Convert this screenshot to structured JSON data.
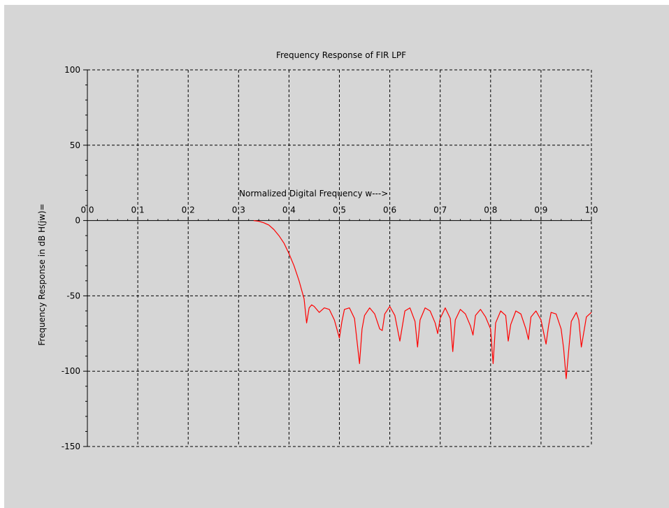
{
  "colors": {
    "figure_background": "#d6d6d6",
    "series": "#ff0000",
    "grid": "#000000"
  },
  "chart_data": {
    "type": "line",
    "title": "Frequency Response of FIR LPF",
    "xlabel": "Normalized Digital Frequency w--->",
    "ylabel": "Frequency Response in dB H(jw)=",
    "xlim": [
      0.0,
      1.0
    ],
    "ylim": [
      -150,
      100
    ],
    "x_ticks": [
      0.0,
      0.1,
      0.2,
      0.3,
      0.4,
      0.5,
      0.6,
      0.7,
      0.8,
      0.9,
      1.0
    ],
    "x_tick_labels": [
      "0.0",
      "0.1",
      "0.2",
      "0.3",
      "0.4",
      "0.5",
      "0.6",
      "0.7",
      "0.8",
      "0.9",
      "1.0"
    ],
    "y_ticks": [
      100,
      50,
      0,
      -50,
      -100,
      -150
    ],
    "y_tick_labels": [
      "100",
      "50",
      "0",
      "-50",
      "-100",
      "-150"
    ],
    "grid": true,
    "grid_style": "dashed",
    "x_axis_position": "y=0",
    "series": [
      {
        "color": "#ff0000",
        "x": [
          0.33,
          0.34,
          0.35,
          0.36,
          0.37,
          0.38,
          0.39,
          0.4,
          0.41,
          0.42,
          0.43,
          0.435,
          0.44,
          0.445,
          0.45,
          0.46,
          0.47,
          0.48,
          0.49,
          0.495,
          0.5,
          0.505,
          0.51,
          0.52,
          0.53,
          0.54,
          0.545,
          0.55,
          0.56,
          0.57,
          0.58,
          0.585,
          0.59,
          0.6,
          0.61,
          0.62,
          0.625,
          0.63,
          0.64,
          0.65,
          0.655,
          0.66,
          0.67,
          0.68,
          0.69,
          0.695,
          0.7,
          0.71,
          0.72,
          0.725,
          0.73,
          0.74,
          0.75,
          0.76,
          0.765,
          0.77,
          0.78,
          0.79,
          0.8,
          0.805,
          0.81,
          0.82,
          0.83,
          0.835,
          0.84,
          0.85,
          0.86,
          0.87,
          0.875,
          0.88,
          0.89,
          0.9,
          0.91,
          0.915,
          0.92,
          0.93,
          0.94,
          0.945,
          0.95,
          0.96,
          0.97,
          0.975,
          0.98,
          0.99,
          1.0
        ],
        "y": [
          0,
          -0.5,
          -1.5,
          -3,
          -6,
          -10,
          -15,
          -22,
          -30,
          -40,
          -52,
          -68,
          -58,
          -56,
          -57,
          -61,
          -58,
          -59,
          -66,
          -72,
          -78,
          -67,
          -59,
          -58,
          -65,
          -95,
          -72,
          -63,
          -58,
          -62,
          -72,
          -73,
          -62,
          -57,
          -63,
          -80,
          -70,
          -60,
          -58,
          -67,
          -84,
          -66,
          -58,
          -60,
          -68,
          -75,
          -65,
          -58,
          -65,
          -87,
          -66,
          -59,
          -62,
          -70,
          -76,
          -63,
          -59,
          -64,
          -72,
          -95,
          -68,
          -60,
          -63,
          -80,
          -69,
          -60,
          -62,
          -72,
          -79,
          -64,
          -60,
          -66,
          -82,
          -70,
          -61,
          -62,
          -72,
          -85,
          -105,
          -67,
          -61,
          -66,
          -84,
          -64,
          -61
        ]
      }
    ]
  }
}
